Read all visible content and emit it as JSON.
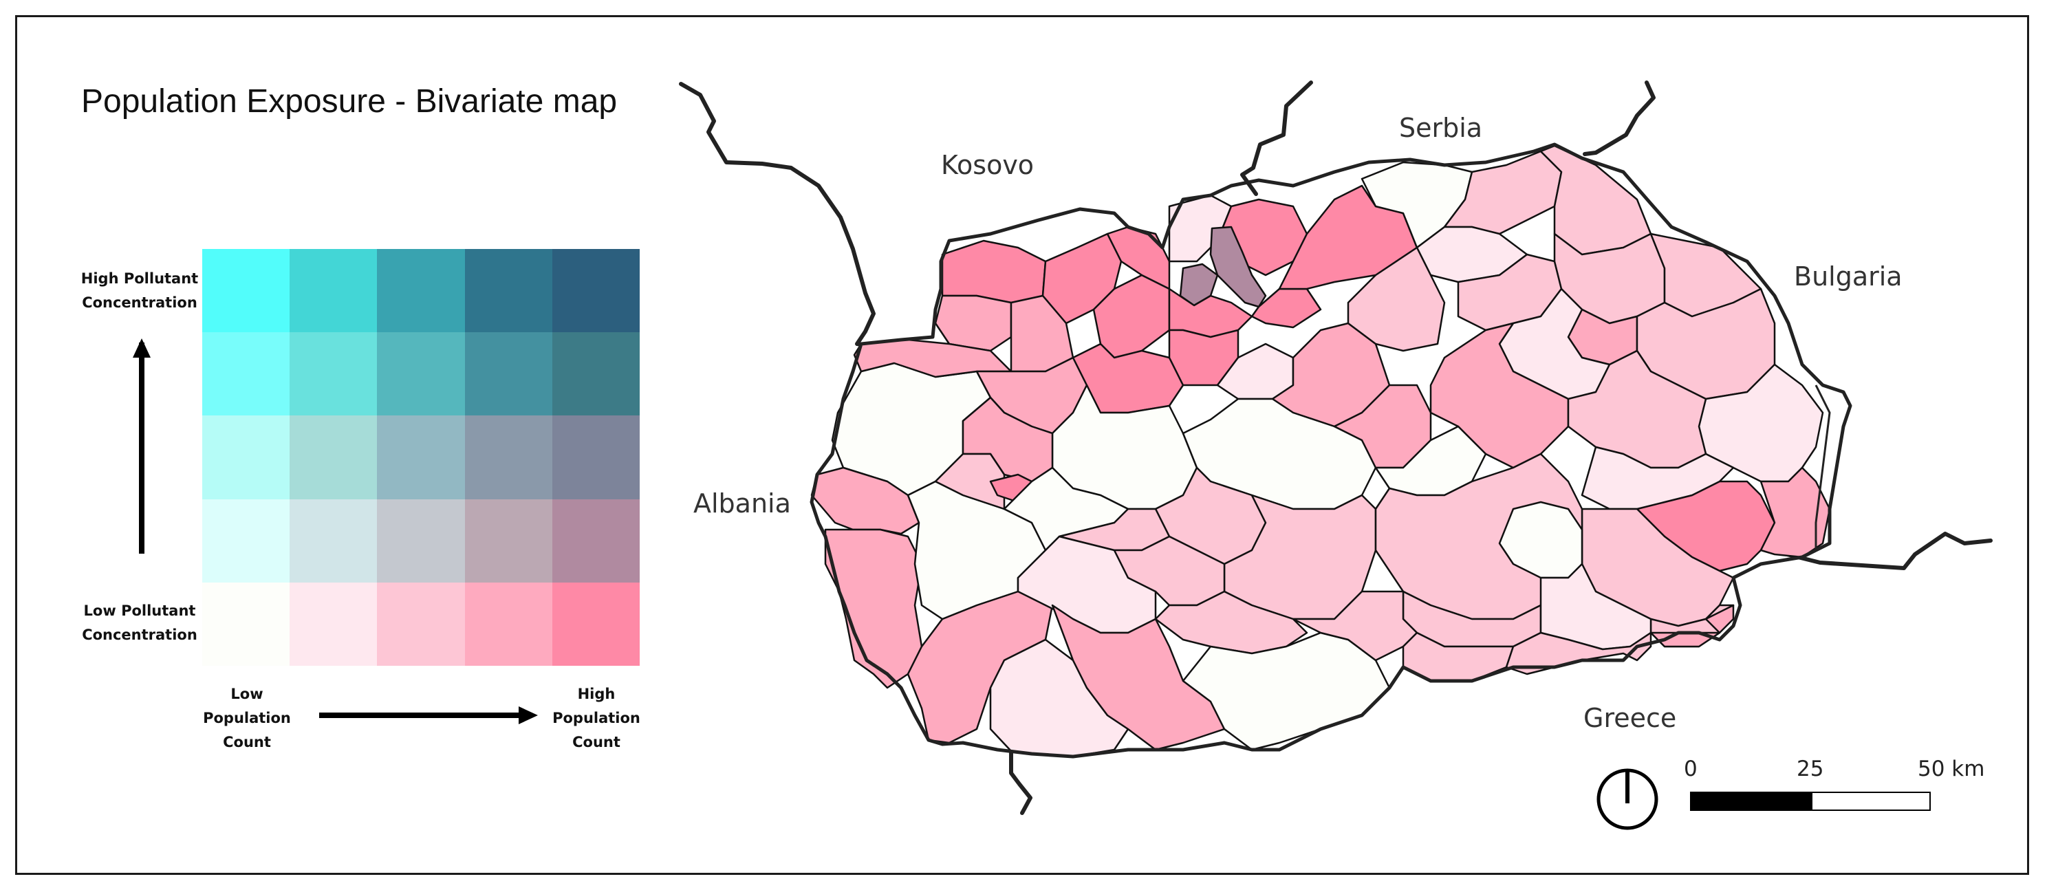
{
  "map": {
    "title": "Population Exposure - Bivariate map",
    "legend": {
      "y_high": "High Pollutant\nConcentration",
      "y_low": "Low Pollutant\nConcentration",
      "x_low": "Low\nPopulation\nCount",
      "x_high": "High\nPopulation\nCount",
      "grid_colors": [
        [
          "#52fdfb",
          "#43d6d6",
          "#39a3b0",
          "#2f758d",
          "#2c5f7e"
        ],
        [
          "#78fdfb",
          "#69e1dd",
          "#55b7bd",
          "#4491a0",
          "#3d7b87"
        ],
        [
          "#b5fcf7",
          "#a6dcd8",
          "#92b8c3",
          "#8a99aa",
          "#7d849a"
        ],
        [
          "#dcfefc",
          "#d1e5e8",
          "#c4c8cf",
          "#bba8b3",
          "#b08aa0"
        ],
        [
          "#fdfefa",
          "#fee8ef",
          "#fdc6d5",
          "#feaabf",
          "#fe89a6"
        ]
      ]
    },
    "countries": {
      "kosovo": "Kosovo",
      "serbia": "Serbia",
      "bulgaria": "Bulgaria",
      "albania": "Albania",
      "greece": "Greece"
    },
    "scale_bar": {
      "label_0": "0",
      "label_25": "25",
      "label_50": "50 km"
    },
    "colors": {
      "white": "#fdfefa",
      "pink1": "#fee8ef",
      "pink2": "#fdc6d5",
      "pink3": "#feaabf",
      "pink4": "#fe89a6",
      "purple": "#b08aa0",
      "border": "#222222"
    }
  }
}
